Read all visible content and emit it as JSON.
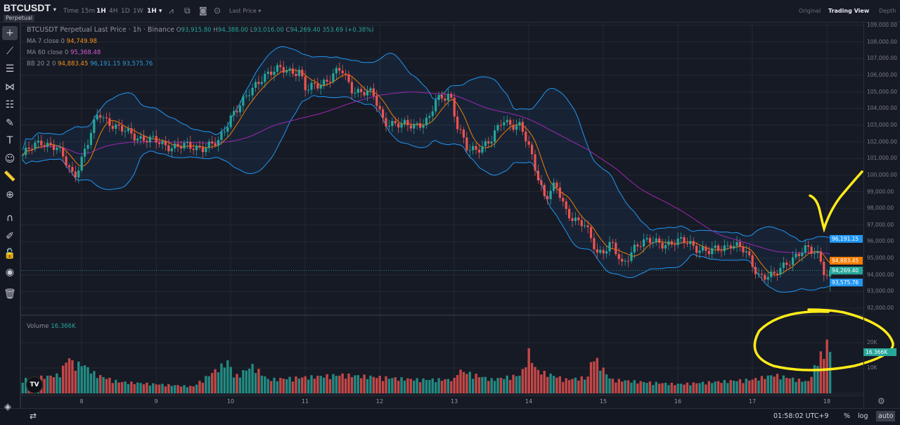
{
  "header": {
    "symbol": "BTCUSDT",
    "symbol_dropdown": "▾",
    "contract_type": "Perpetual",
    "intervals": [
      {
        "label": "Time",
        "active": false
      },
      {
        "label": "15m",
        "active": false
      },
      {
        "label": "1H",
        "active": true
      },
      {
        "label": "4H",
        "active": false
      },
      {
        "label": "1D",
        "active": false
      },
      {
        "label": "1W",
        "active": false
      },
      {
        "label": "1H ▾",
        "active": true
      }
    ],
    "icons": [
      "chart-type-icon",
      "indicators-icon",
      "camera-icon",
      "settings-circle-icon"
    ],
    "price_type": "Last Price ▾",
    "views": [
      {
        "label": "Original",
        "active": false
      },
      {
        "label": "Trading View",
        "active": true
      },
      {
        "label": "Depth",
        "active": false
      }
    ]
  },
  "toolbar": {
    "tools": [
      {
        "name": "crosshair",
        "glyph": "+",
        "selected": true
      },
      {
        "name": "trendline",
        "glyph": "⟋"
      },
      {
        "name": "horizontal-lines",
        "glyph": "☰"
      },
      {
        "name": "pitchfork",
        "glyph": "⋈"
      },
      {
        "name": "fib-retracement",
        "glyph": "☷"
      },
      {
        "name": "brush",
        "glyph": "✎"
      },
      {
        "name": "text",
        "glyph": "T"
      },
      {
        "name": "emoji",
        "glyph": "☺"
      },
      {
        "name": "ruler",
        "glyph": "📏"
      },
      {
        "name": "zoom-in",
        "glyph": "⊕"
      },
      {
        "name": "magnet",
        "glyph": "∩"
      },
      {
        "name": "lock-drawing",
        "glyph": "✐"
      },
      {
        "name": "lock",
        "glyph": "🔓"
      },
      {
        "name": "eye",
        "glyph": "◉"
      },
      {
        "name": "trash",
        "glyph": "🗑"
      }
    ],
    "layers_glyph": "◈"
  },
  "legend": {
    "title": "BTCUSDT Perpetual Last Price · 1h · Binance",
    "open_label": "O",
    "open": "93,915.80",
    "high_label": "H",
    "high": "94,388.00",
    "low_label": "L",
    "low": "93,016.00",
    "close_label": "C",
    "close": "94,269.40",
    "change": "353.69 (+0.38%)",
    "ma7_label": "MA 7 close 0",
    "ma7": "94,749.98",
    "ma60_label": "MA 60 close 0",
    "ma60": "95,368.48",
    "bb_label": "BB 20 2 0",
    "bb_basis": "94,883.45",
    "bb_upper": "96,191.15",
    "bb_lower": "93,575.76",
    "volume_label": "Volume",
    "volume": "16.366K"
  },
  "price_axis": {
    "labels": [
      "109,000.00",
      "108,000.00",
      "107,000.00",
      "106,000.00",
      "105,000.00",
      "104,000.00",
      "103,000.00",
      "102,000.00",
      "101,000.00",
      "100,000.00",
      "99,000.00",
      "98,000.00",
      "97,000.00",
      "96,000.00",
      "95,000.00",
      "94,000.00",
      "93,000.00",
      "92,000.00"
    ],
    "tags": [
      {
        "label": "96,191.15",
        "value": 96191.15,
        "color": "#2196f3"
      },
      {
        "label": "94,883.45",
        "value": 94883.45,
        "color": "#f57c00"
      },
      {
        "label": "94,269.40",
        "value": 94269.4,
        "color": "#26a69a"
      },
      {
        "label": "93,575.76",
        "value": 93575.76,
        "color": "#2196f3"
      }
    ]
  },
  "volume_axis": {
    "labels": [
      {
        "label": "20K",
        "value": 20
      },
      {
        "label": "10K",
        "value": 10
      }
    ],
    "tag": {
      "label": "16.366K",
      "value": 16.366,
      "color": "#26a69a"
    }
  },
  "time_axis": {
    "labels": [
      "8",
      "9",
      "10",
      "11",
      "12",
      "13",
      "14",
      "15",
      "16",
      "17",
      "18"
    ]
  },
  "bottom": {
    "clock": "01:58:02 UTC+9",
    "percent": "%",
    "log": "log",
    "auto": "auto"
  },
  "chart_data": {
    "type": "candlestick",
    "interval": "1h",
    "x_unit": "day of month",
    "xlim": [
      7.2,
      18.45
    ],
    "ylim": [
      91800,
      109200
    ],
    "grid": true,
    "colors": {
      "up": "#26a69a",
      "down": "#ef5350",
      "ma7": "#f57c00",
      "ma60": "#9c27b0",
      "bb": "#2196f3"
    },
    "close_path": [
      [
        7.21,
        101200
      ],
      [
        7.47,
        102070
      ],
      [
        7.66,
        101640
      ],
      [
        7.9,
        99950
      ],
      [
        8.08,
        101850
      ],
      [
        8.23,
        103760
      ],
      [
        8.51,
        102700
      ],
      [
        8.79,
        102280
      ],
      [
        9.08,
        101850
      ],
      [
        9.45,
        101640
      ],
      [
        9.83,
        101850
      ],
      [
        10.02,
        103760
      ],
      [
        10.21,
        104600
      ],
      [
        10.44,
        106080
      ],
      [
        10.68,
        106300
      ],
      [
        10.92,
        106300
      ],
      [
        11.01,
        105020
      ],
      [
        11.25,
        105660
      ],
      [
        11.48,
        106300
      ],
      [
        11.62,
        105240
      ],
      [
        11.91,
        104800
      ],
      [
        12.05,
        103330
      ],
      [
        12.28,
        102910
      ],
      [
        12.66,
        103250
      ],
      [
        12.75,
        104390
      ],
      [
        12.94,
        105020
      ],
      [
        13.04,
        102910
      ],
      [
        13.18,
        101430
      ],
      [
        13.51,
        102070
      ],
      [
        13.65,
        103330
      ],
      [
        13.89,
        102910
      ],
      [
        14.03,
        101220
      ],
      [
        14.22,
        98680
      ],
      [
        14.36,
        99320
      ],
      [
        14.5,
        97840
      ],
      [
        14.74,
        96990
      ],
      [
        14.92,
        95300
      ],
      [
        15.11,
        95940
      ],
      [
        15.25,
        94450
      ],
      [
        15.44,
        95940
      ],
      [
        15.77,
        95940
      ],
      [
        16.15,
        95940
      ],
      [
        16.43,
        95300
      ],
      [
        16.72,
        95940
      ],
      [
        16.91,
        95300
      ],
      [
        17.09,
        94030
      ],
      [
        17.28,
        93820
      ],
      [
        17.47,
        94880
      ],
      [
        17.75,
        95510
      ],
      [
        17.9,
        95300
      ],
      [
        17.99,
        93820
      ],
      [
        18.06,
        94269.4
      ]
    ],
    "volume_path_k": [
      [
        7.21,
        6
      ],
      [
        7.7,
        8
      ],
      [
        7.83,
        16
      ],
      [
        7.9,
        12
      ],
      [
        8.0,
        13
      ],
      [
        8.2,
        8
      ],
      [
        8.5,
        5
      ],
      [
        9.0,
        4
      ],
      [
        9.5,
        3
      ],
      [
        9.97,
        14
      ],
      [
        10.05,
        7
      ],
      [
        10.3,
        12
      ],
      [
        10.5,
        6
      ],
      [
        11.0,
        7
      ],
      [
        11.5,
        8
      ],
      [
        12.0,
        7
      ],
      [
        12.5,
        6
      ],
      [
        13.0,
        6
      ],
      [
        13.05,
        10
      ],
      [
        13.5,
        6
      ],
      [
        13.9,
        8
      ],
      [
        14.0,
        18
      ],
      [
        14.1,
        10
      ],
      [
        14.5,
        6
      ],
      [
        14.8,
        7
      ],
      [
        14.85,
        16
      ],
      [
        14.92,
        14
      ],
      [
        15.1,
        6
      ],
      [
        15.5,
        5
      ],
      [
        16.0,
        4
      ],
      [
        16.5,
        5
      ],
      [
        17.0,
        6
      ],
      [
        17.3,
        8
      ],
      [
        17.75,
        5
      ],
      [
        17.93,
        18
      ],
      [
        17.97,
        14
      ],
      [
        18.0,
        25
      ],
      [
        18.06,
        16.366
      ]
    ],
    "last_candle": {
      "open": 93915.8,
      "high": 94388.0,
      "low": 93016.0,
      "close": 94269.4
    },
    "ma_periods": [
      7,
      60
    ],
    "bb": {
      "period": 20,
      "mult": 2
    }
  }
}
